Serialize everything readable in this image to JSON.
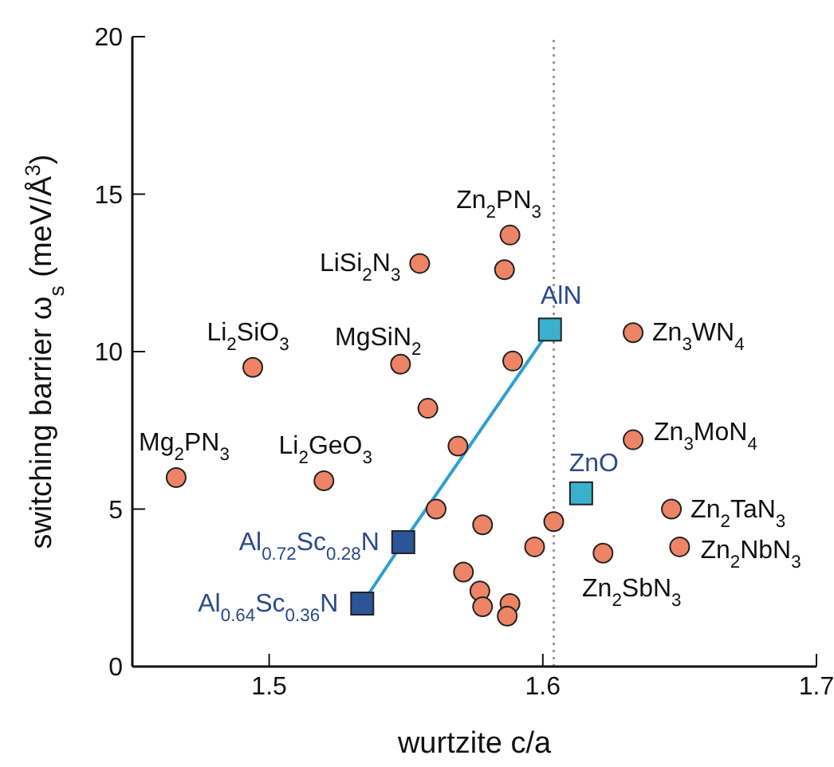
{
  "chart_data": {
    "type": "scatter",
    "xlabel": "wurtzite c/a",
    "ylabel": "switching barrier ω$_{s}$ (meV/Å$^{3}$)",
    "xlim": [
      1.45,
      1.7
    ],
    "xticks": [
      1.5,
      1.6,
      1.7
    ],
    "ylim": [
      0,
      20
    ],
    "yticks": [
      0,
      5,
      10,
      15,
      20
    ],
    "series": [
      {
        "type": "line",
        "color": "#2e9fd0",
        "marker": "none",
        "line_style": "solid",
        "x": [
          1.534,
          1.549,
          1.6026
        ],
        "values": [
          2.0,
          3.95,
          10.7
        ]
      },
      {
        "color": "#ee8466",
        "marker": "circle",
        "x": [
          1.466,
          1.494,
          1.52,
          1.555,
          1.548,
          1.558,
          1.569,
          1.561,
          1.588,
          1.586,
          1.589,
          1.571,
          1.578,
          1.577,
          1.578,
          1.588,
          1.587,
          1.597,
          1.604,
          1.622,
          1.633,
          1.633,
          1.647,
          1.65
        ],
        "values": [
          6.0,
          9.5,
          5.9,
          12.8,
          9.6,
          8.2,
          7.0,
          5.0,
          13.7,
          12.6,
          9.7,
          3.0,
          4.5,
          2.4,
          1.9,
          2.0,
          1.6,
          3.8,
          4.6,
          3.6,
          10.6,
          7.2,
          5.0,
          3.8
        ]
      },
      {
        "name": "AlN",
        "color": "#3ab0cc",
        "marker": "square",
        "x": [
          1.6026
        ],
        "values": [
          10.7
        ]
      },
      {
        "name": "ZnO",
        "color": "#3ab0cc",
        "marker": "square",
        "x": [
          1.614
        ],
        "values": [
          5.5
        ]
      },
      {
        "name": "Al$_{0.72}$Sc$_{0.28}$N",
        "color": "#2b5597",
        "marker": "square",
        "x": [
          1.549
        ],
        "values": [
          3.95
        ]
      },
      {
        "name": "Al$_{0.64}$Sc$_{0.36}$N",
        "color": "#2b5597",
        "marker": "square",
        "x": [
          1.534
        ],
        "values": [
          2.0
        ]
      }
    ],
    "ref_lines": [
      {
        "axis": "x",
        "value": 1.604,
        "color": "#999999",
        "line_style": "dotted"
      }
    ],
    "annotations": [
      {
        "text": "Mg$_{2}$PN$_{3}$",
        "x": 1.466,
        "y": 6.0
      },
      {
        "text": "Li$_{2}$SiO$_{3}$",
        "x": 1.494,
        "y": 9.5
      },
      {
        "text": "Li$_{2}$GeO$_{3}$",
        "x": 1.52,
        "y": 5.9
      },
      {
        "text": "LiSi$_{2}$N$_{3}$",
        "x": 1.555,
        "y": 12.8
      },
      {
        "text": "MgSiN$_{2}$",
        "x": 1.548,
        "y": 9.6
      },
      {
        "text": "Zn$_{2}$PN$_{3}$",
        "x": 1.588,
        "y": 13.7
      },
      {
        "text": "Zn$_{3}$WN$_{4}$",
        "x": 1.633,
        "y": 10.6
      },
      {
        "text": "Zn$_{3}$MoN$_{4}$",
        "x": 1.633,
        "y": 7.2
      },
      {
        "text": "Zn$_{2}$TaN$_{3}$",
        "x": 1.647,
        "y": 5.0
      },
      {
        "text": "Zn$_{2}$NbN$_{3}$",
        "x": 1.65,
        "y": 3.8
      },
      {
        "text": "Zn$_{2}$SbN$_{3}$",
        "x": 1.622,
        "y": 3.6
      }
    ]
  }
}
